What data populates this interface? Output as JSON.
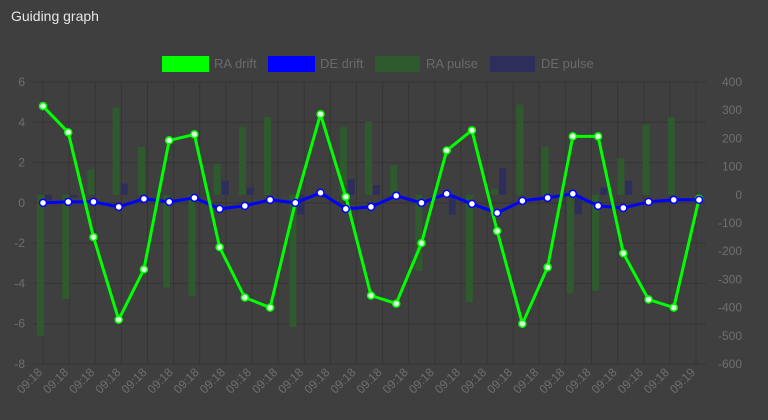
{
  "panel": {
    "title": "Guiding graph"
  },
  "colors": {
    "background": "#3f3f3f",
    "grid": "#353535",
    "ra_drift": "#00ff00",
    "de_drift": "#0000ff",
    "ra_pulse": "#2e5a2e",
    "de_pulse": "#2e2e5c",
    "tick_text": "#6f6f6f"
  },
  "chart_data": {
    "type": "line",
    "title": "",
    "legend_position": "top",
    "grid": true,
    "y_left": {
      "range": [
        -8,
        6
      ],
      "ticks": [
        -8,
        -6,
        -4,
        -2,
        0,
        2,
        4,
        6
      ]
    },
    "y_right": {
      "range": [
        -600,
        400
      ],
      "ticks": [
        -600,
        -500,
        -400,
        -300,
        -200,
        -100,
        0,
        100,
        200,
        300,
        400
      ]
    },
    "x_tick_labels": [
      "09:18",
      "09:18",
      "09:18",
      "09:18",
      "09:18",
      "09:18",
      "09:18",
      "09:18",
      "09:18",
      "09:18",
      "09:18",
      "09:18",
      "09:18",
      "09:18",
      "09:18",
      "09:18",
      "09:18",
      "09:18",
      "09:18",
      "09:18",
      "09:18",
      "09:18",
      "09:18",
      "09:18",
      "09:18",
      "09:19"
    ],
    "series": [
      {
        "name": "RA drift",
        "axis": "left",
        "kind": "line",
        "values": [
          4.8,
          3.5,
          -1.7,
          -5.8,
          -3.3,
          3.1,
          3.4,
          -2.2,
          -4.7,
          -5.2,
          0.0,
          4.4,
          0.3,
          -4.6,
          -5.0,
          -2.0,
          2.6,
          3.6,
          -1.4,
          -6.0,
          -3.2,
          3.3,
          3.3,
          -2.5,
          -4.8,
          -5.2,
          0.2
        ]
      },
      {
        "name": "DE drift",
        "axis": "left",
        "kind": "line",
        "values": [
          0.0,
          0.05,
          0.05,
          -0.2,
          0.2,
          0.05,
          0.25,
          -0.3,
          -0.15,
          0.15,
          0.0,
          0.5,
          -0.3,
          -0.2,
          0.35,
          0.0,
          0.45,
          -0.05,
          -0.5,
          0.1,
          0.25,
          0.45,
          -0.15,
          -0.25,
          0.05,
          0.15,
          0.15
        ]
      },
      {
        "name": "RA pulse",
        "axis": "right",
        "kind": "bar",
        "values": [
          -500,
          -370,
          90,
          310,
          170,
          -330,
          -360,
          110,
          240,
          275,
          -470,
          0,
          240,
          260,
          105,
          -270,
          0,
          -380,
          20,
          320,
          170,
          -350,
          -340,
          130,
          250,
          275,
          0
        ]
      },
      {
        "name": "DE pulse",
        "axis": "right",
        "kind": "bar",
        "values": [
          -20,
          -10,
          0,
          40,
          0,
          0,
          0,
          50,
          25,
          0,
          -70,
          -10,
          55,
          35,
          0,
          0,
          -70,
          0,
          95,
          0,
          0,
          -70,
          25,
          50,
          0,
          0,
          0
        ]
      }
    ]
  }
}
